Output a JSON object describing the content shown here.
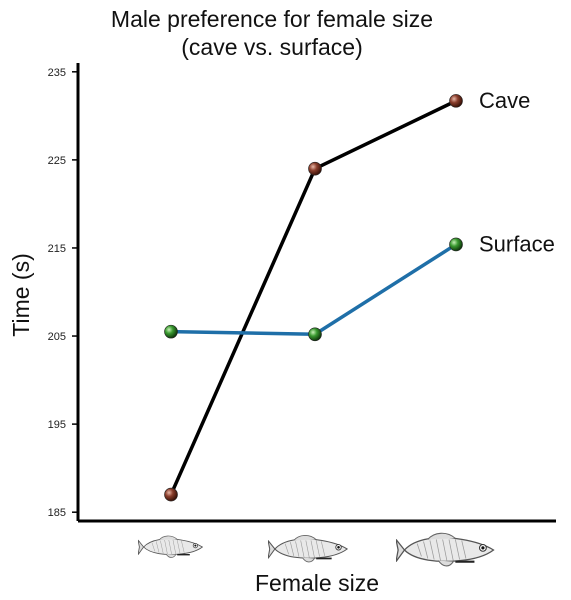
{
  "chart_data": {
    "type": "line",
    "title_line1": "Male preference for female size",
    "title_line2": "(cave vs. surface)",
    "xlabel": "Female size",
    "ylabel": "Time (s)",
    "categories": [
      "small",
      "medium",
      "large"
    ],
    "category_icons": [
      "small-fish-icon",
      "medium-fish-icon",
      "large-fish-icon"
    ],
    "yticks": [
      "185",
      "195",
      "205",
      "215",
      "225",
      "235"
    ],
    "ylim": [
      184,
      236
    ],
    "grid": false,
    "legend": "inline at line ends (right)",
    "series": [
      {
        "name": "Cave",
        "values": [
          187,
          224,
          231.7
        ],
        "line_color": "#000000",
        "marker_color": "#7a3424"
      },
      {
        "name": "Surface",
        "values": [
          205.5,
          205.2,
          215.4
        ],
        "line_color": "#1f6fa8",
        "marker_color": "#2f8a2a"
      }
    ]
  }
}
